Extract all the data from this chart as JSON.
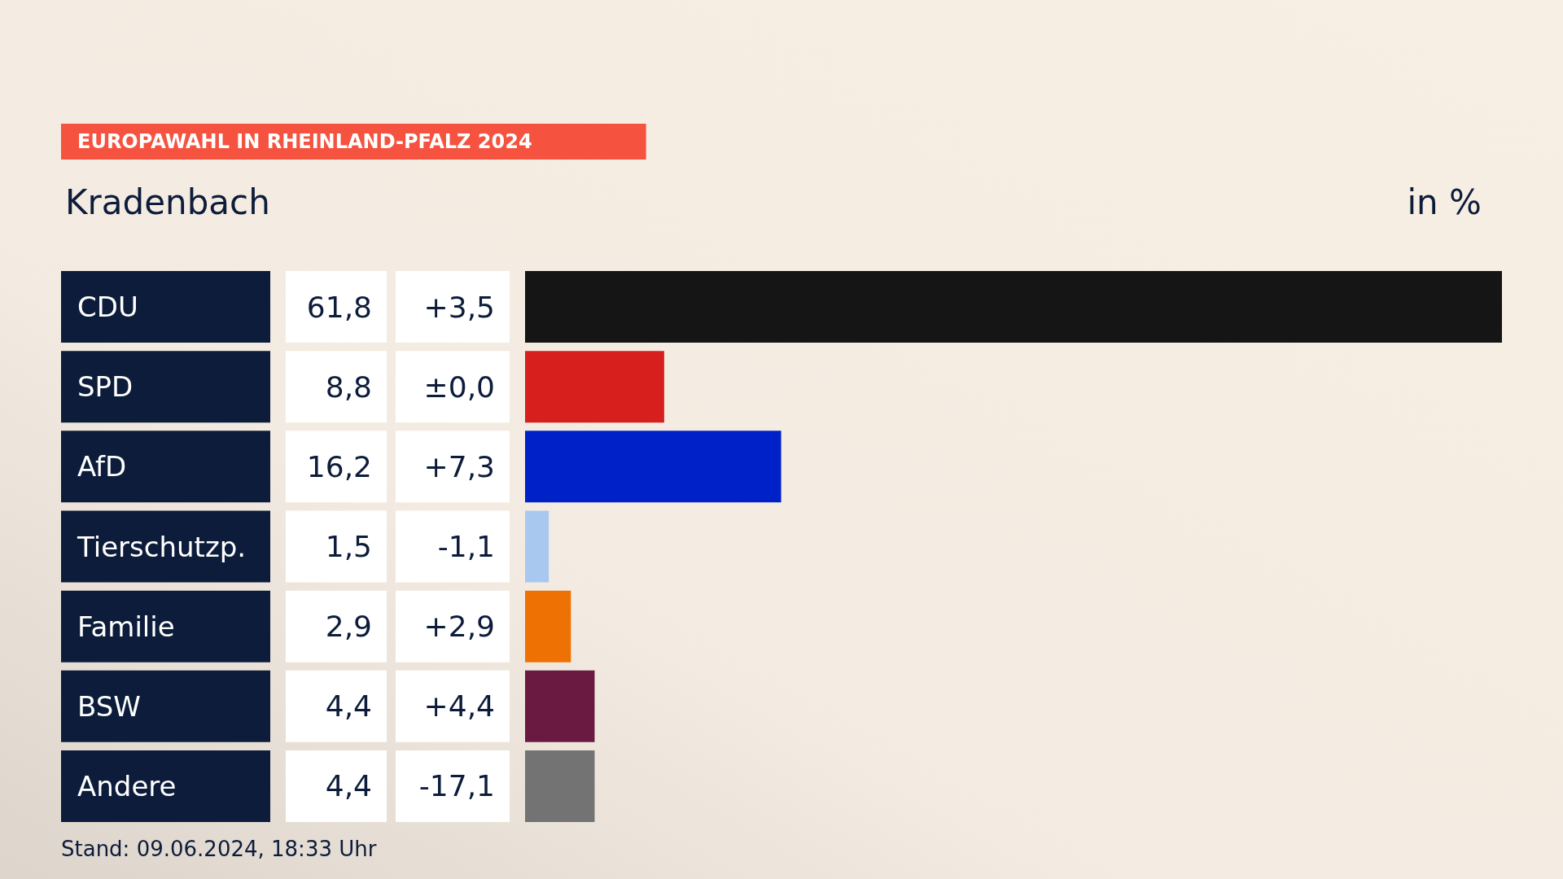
{
  "chart_data": {
    "type": "bar",
    "orientation": "horizontal",
    "title": "EUROPAWAHL IN RHEINLAND-PFALZ 2024",
    "subtitle": "Kradenbach",
    "xlabel": "in %",
    "tick_labels": "y",
    "categories": [
      "CDU",
      "SPD",
      "AfD",
      "Tierschutzp.",
      "Familie",
      "BSW",
      "Andere"
    ],
    "values": [
      61.8,
      8.8,
      16.2,
      1.5,
      2.9,
      4.4,
      4.4
    ],
    "value_labels": [
      "61,8",
      "8,8",
      "16,2",
      "1,5",
      "2,9",
      "4,4",
      "4,4"
    ],
    "colors": [
      "#151515",
      "#d71f1d",
      "#0021c8",
      "#a9c8f0",
      "#ee7203",
      "#6a1a40",
      "#737373"
    ],
    "annotations": [
      "+3,5",
      "±0,0",
      "+7,3",
      "-1,1",
      "+2,9",
      "+4,4",
      "-17,1",
      "Stand: 09.06.2024, 18:33 Uhr"
    ]
  }
}
